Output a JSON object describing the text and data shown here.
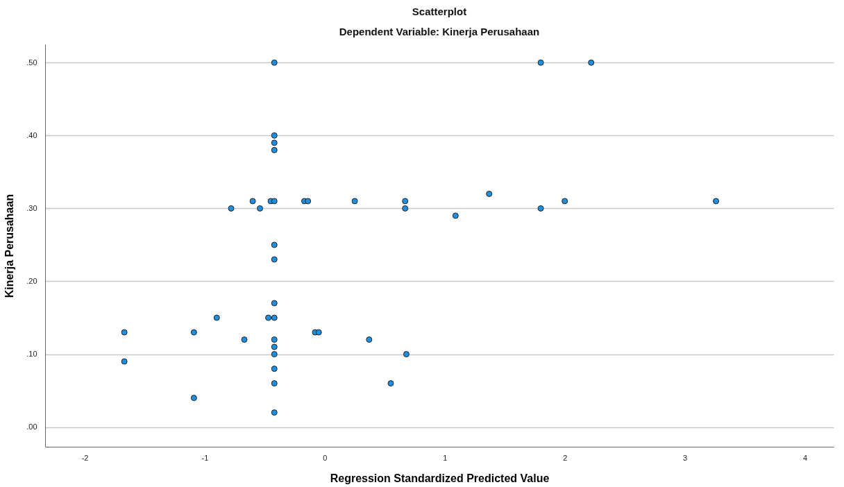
{
  "chart_data": {
    "type": "scatter",
    "title": "Scatterplot",
    "subtitle": "Dependent Variable: Kinerja Perusahaan",
    "xlabel": "Regression Standardized Predicted Value",
    "ylabel": "Kinerja Perusahaan",
    "xlim": [
      -2.33,
      4.24
    ],
    "ylim": [
      -0.027,
      0.525
    ],
    "xticks": [
      -2,
      -1,
      0,
      1,
      2,
      3,
      4
    ],
    "yticks": [
      {
        "value": 0,
        "label": ".00"
      },
      {
        "value": 0.1,
        "label": ".10"
      },
      {
        "value": 0.2,
        "label": ".20"
      },
      {
        "value": 0.3,
        "label": ".30"
      },
      {
        "value": 0.4,
        "label": ".40"
      },
      {
        "value": 0.5,
        "label": ".50"
      }
    ],
    "grid": "y",
    "marker": "circle",
    "series": [
      {
        "color": "#1f8fdd",
        "x": [
          -0.42,
          1.8,
          2.22,
          -0.42,
          -0.42,
          -0.42,
          -0.6,
          -0.45,
          -0.42,
          -0.17,
          -0.14,
          0.25,
          0.67,
          2.0,
          3.26,
          1.37,
          -0.78,
          -0.54,
          0.67,
          1.8,
          1.09,
          -0.42,
          -0.42,
          -0.42,
          -0.9,
          -0.47,
          -0.42,
          -1.67,
          -1.09,
          -0.08,
          -0.05,
          -0.67,
          -0.42,
          0.37,
          -0.42,
          -0.42,
          0.68,
          -1.67,
          -0.42,
          -0.42,
          0.55,
          -1.09,
          -0.42
        ],
        "values": [
          0.5,
          0.5,
          0.5,
          0.4,
          0.39,
          0.38,
          0.31,
          0.31,
          0.31,
          0.31,
          0.31,
          0.31,
          0.31,
          0.31,
          0.31,
          0.32,
          0.3,
          0.3,
          0.3,
          0.3,
          0.29,
          0.25,
          0.23,
          0.17,
          0.15,
          0.15,
          0.15,
          0.13,
          0.13,
          0.13,
          0.13,
          0.12,
          0.12,
          0.12,
          0.11,
          0.1,
          0.1,
          0.09,
          0.08,
          0.06,
          0.06,
          0.04,
          0.02
        ]
      }
    ]
  }
}
